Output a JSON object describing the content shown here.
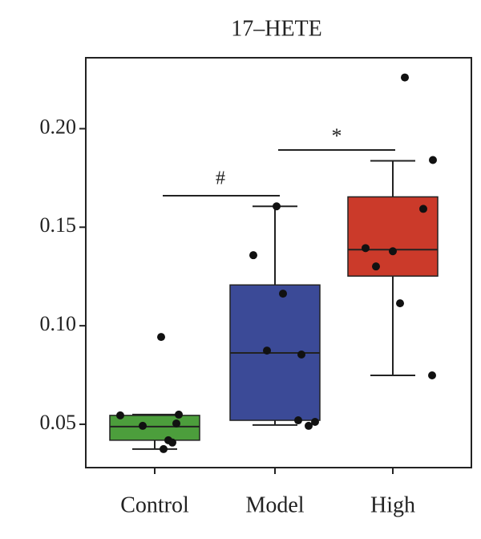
{
  "chart_data": {
    "type": "box",
    "title": "17–HETE",
    "categories": [
      "Control",
      "Model",
      "High"
    ],
    "colors": [
      "#4c9e3c",
      "#3b4a97",
      "#cb3a2a"
    ],
    "boxes": [
      {
        "min": 0.0374,
        "q1": 0.0419,
        "median": 0.0488,
        "q3": 0.0545,
        "max": 0.0549
      },
      {
        "min": 0.0496,
        "q1": 0.052,
        "median": 0.0862,
        "q3": 0.1207,
        "max": 0.1606
      },
      {
        "min": 0.0748,
        "q1": 0.1252,
        "median": 0.1386,
        "q3": 0.1654,
        "max": 0.1837
      }
    ],
    "points": [
      [
        0.0545,
        0.0492,
        0.0419,
        0.0407,
        0.0374,
        0.0504,
        0.0549,
        0.0943
      ],
      [
        0.1606,
        0.1358,
        0.1163,
        0.0874,
        0.0854,
        0.052,
        0.0512,
        0.0492
      ],
      [
        0.226,
        0.1841,
        0.1593,
        0.1394,
        0.1378,
        0.1301,
        0.1114,
        0.0748
      ]
    ],
    "annotations": [
      "#",
      "*"
    ],
    "ylim": [
      0.028,
      0.236
    ],
    "yticks": [
      0.05,
      {
        "value": 0.1,
        "label": "0.10"
      },
      0.15,
      {
        "value": 0.2,
        "label": "0.20"
      }
    ]
  }
}
